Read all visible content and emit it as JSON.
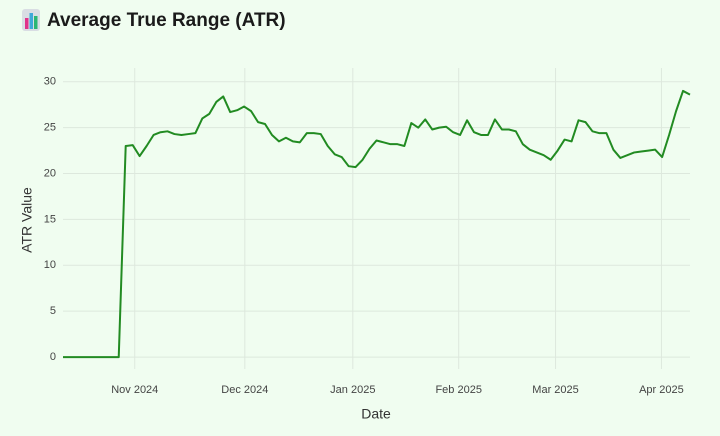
{
  "chart_data": {
    "type": "line",
    "title": "Average True Range (ATR)",
    "x_label": "Date",
    "y_label": "ATR Value",
    "series": [
      {
        "name": "ATR",
        "color": "#228b22",
        "values": [
          0,
          0,
          0,
          0,
          0,
          0,
          0,
          0,
          0,
          23.0,
          23.1,
          21.9,
          23.0,
          24.2,
          24.5,
          24.6,
          24.3,
          24.2,
          24.3,
          24.4,
          26.0,
          26.5,
          27.8,
          28.4,
          26.7,
          26.9,
          27.3,
          26.8,
          25.6,
          25.4,
          24.2,
          23.5,
          23.9,
          23.5,
          23.4,
          24.4,
          24.4,
          24.3,
          23.0,
          22.1,
          21.8,
          20.8,
          20.7,
          21.5,
          22.7,
          23.6,
          23.4,
          23.2,
          23.2,
          23.0,
          25.5,
          25.0,
          25.9,
          24.8,
          25.0,
          25.1,
          24.5,
          24.2,
          25.8,
          24.5,
          24.2,
          24.2,
          25.9,
          24.8,
          24.8,
          24.6,
          23.2,
          22.6,
          22.3,
          22.0,
          21.5,
          22.5,
          23.7,
          23.5,
          25.8,
          25.6,
          24.6,
          24.4,
          24.4,
          22.6,
          21.7,
          22.0,
          22.3,
          22.4,
          22.5,
          22.6,
          21.8,
          24.2,
          26.8,
          29.0,
          28.6
        ]
      }
    ],
    "xlim": [
      0,
      90
    ],
    "xticks": [
      {
        "value": 10.3,
        "label": "Nov 2024"
      },
      {
        "value": 26.1,
        "label": "Dec 2024"
      },
      {
        "value": 41.6,
        "label": "Jan 2025"
      },
      {
        "value": 56.8,
        "label": "Feb 2025"
      },
      {
        "value": 70.7,
        "label": "Mar 2025"
      },
      {
        "value": 85.9,
        "label": "Apr 2025"
      }
    ],
    "ylim": [
      -1.3,
      31.5
    ],
    "yticks": [
      0,
      5,
      10,
      15,
      20,
      25,
      30
    ],
    "grid": true
  }
}
